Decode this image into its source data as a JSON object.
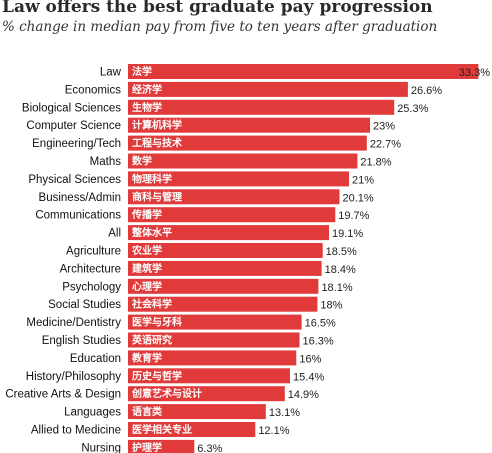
{
  "chart_data": {
    "type": "bar",
    "orientation": "horizontal",
    "title": "Law offers the best graduate pay progression",
    "subtitle": "% change in median pay from five to ten years after graduation",
    "categories": [
      "Law",
      "Economics",
      "Biological Sciences",
      "Computer Science",
      "Engineering/Tech",
      "Maths",
      "Physical Sciences",
      "Business/Admin",
      "Communications",
      "All",
      "Agriculture",
      "Architecture",
      "Psychology",
      "Social Studies",
      "Medicine/Dentistry",
      "English Studies",
      "Education",
      "History/Philosophy",
      "Creative Arts & Design",
      "Languages",
      "Allied to Medicine",
      "Nursing"
    ],
    "chinese_labels": [
      "法学",
      "经济学",
      "生物学",
      "计算机科学",
      "工程与技术",
      "数学",
      "物理科学",
      "商科与管理",
      "传播学",
      "整体水平",
      "农业学",
      "建筑学",
      "心理学",
      "社会科学",
      "医学与牙科",
      "英语研究",
      "教育学",
      "历史与哲学",
      "创意艺术与设计",
      "语言类",
      "医学相关专业",
      "护理学"
    ],
    "values": [
      33.3,
      26.6,
      25.3,
      23,
      22.7,
      21.8,
      21,
      20.1,
      19.7,
      19.1,
      18.5,
      18.4,
      18.1,
      18,
      16.5,
      16.3,
      16,
      15.4,
      14.9,
      13.1,
      12.1,
      6.3
    ],
    "value_labels": [
      "33.3%",
      "26.6%",
      "25.3%",
      "23%",
      "22.7%",
      "21.8%",
      "21%",
      "20.1%",
      "19.7%",
      "19.1%",
      "18.5%",
      "18.4%",
      "18.1%",
      "18%",
      "16.5%",
      "16.3%",
      "16%",
      "15.4%",
      "14.9%",
      "13.1%",
      "12.1%",
      "6.3%"
    ],
    "bar_color": "#e03a3a",
    "xlim": [
      0,
      34.5
    ],
    "grid": false,
    "legend": "none"
  }
}
